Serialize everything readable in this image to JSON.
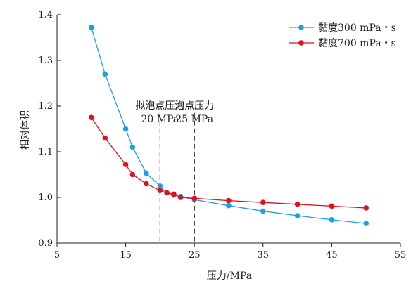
{
  "chart_data": {
    "type": "line",
    "title": "",
    "xlabel": "压力/MPa",
    "ylabel": "相对体积",
    "xlim": [
      5,
      55
    ],
    "ylim": [
      0.9,
      1.4
    ],
    "x_ticks": [
      5,
      15,
      25,
      35,
      45,
      55
    ],
    "y_ticks": [
      0.9,
      1.0,
      1.1,
      1.2,
      1.3,
      1.4
    ],
    "x_tick_labels": [
      "5",
      "15",
      "25",
      "35",
      "45",
      "55"
    ],
    "y_tick_labels": [
      "0.9",
      "1.0",
      "1.1",
      "1.2",
      "1.3",
      "1.4"
    ],
    "grid": false,
    "legend_position": "top-right",
    "series": [
      {
        "name": "黏度300 mPa・s",
        "color": "#1ba1e2",
        "points": [
          [
            10,
            1.372
          ],
          [
            12,
            1.27
          ],
          [
            15,
            1.15
          ],
          [
            16,
            1.11
          ],
          [
            18,
            1.053
          ],
          [
            20,
            1.025
          ],
          [
            21,
            1.01
          ],
          [
            22,
            1.005
          ],
          [
            23,
            1.002
          ],
          [
            25,
            0.995
          ],
          [
            30,
            0.982
          ],
          [
            35,
            0.97
          ],
          [
            40,
            0.96
          ],
          [
            45,
            0.951
          ],
          [
            50,
            0.943
          ]
        ]
      },
      {
        "name": "黏度700 mPa・s",
        "color": "#e0101d",
        "points": [
          [
            10,
            1.175
          ],
          [
            12,
            1.13
          ],
          [
            15,
            1.072
          ],
          [
            16,
            1.05
          ],
          [
            18,
            1.03
          ],
          [
            20,
            1.015
          ],
          [
            21,
            1.01
          ],
          [
            22,
            1.007
          ],
          [
            23,
            1.0
          ],
          [
            25,
            0.998
          ],
          [
            30,
            0.993
          ],
          [
            35,
            0.989
          ],
          [
            40,
            0.985
          ],
          [
            45,
            0.981
          ],
          [
            50,
            0.977
          ]
        ]
      }
    ],
    "annotations": [
      {
        "x": 20,
        "line1": "拟泡点压力",
        "line2": "20 MPa"
      },
      {
        "x": 25,
        "line1": "泡点压力",
        "line2": "25 MPa"
      }
    ]
  }
}
